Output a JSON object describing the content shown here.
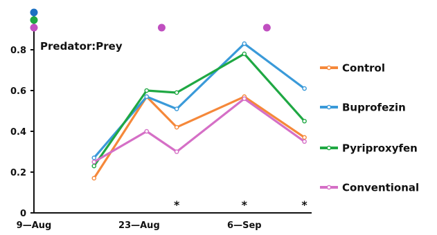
{
  "chart_data": {
    "type": "line",
    "title": "Predator:Prey",
    "xlabel": "",
    "ylabel": "",
    "ylim": [
      0,
      0.9
    ],
    "yticks": [
      0,
      0.2,
      0.4,
      0.6,
      0.8
    ],
    "ytick_labels": [
      "0",
      "0.2",
      "0.4",
      "0.6",
      "0.8"
    ],
    "x_tick_labels": [
      "9—Aug",
      "23—Aug",
      "6—Sep"
    ],
    "x_tick_days": [
      0,
      14,
      28
    ],
    "x_days": [
      8,
      15,
      19,
      28,
      36
    ],
    "series": [
      {
        "name": "Control",
        "color": "#f5883a",
        "values": [
          0.17,
          0.57,
          0.42,
          0.57,
          0.37
        ]
      },
      {
        "name": "Buprofezin",
        "color": "#3a9ad9",
        "values": [
          0.27,
          0.57,
          0.51,
          0.83,
          0.61
        ]
      },
      {
        "name": "Pyriproxyfen",
        "color": "#1fa843",
        "values": [
          0.23,
          0.6,
          0.59,
          0.78,
          0.45
        ]
      },
      {
        "name": "Conventional",
        "color": "#d56fc6",
        "values": [
          0.25,
          0.4,
          0.3,
          0.56,
          0.35
        ]
      }
    ],
    "legend_position": "right",
    "grid": false,
    "significance_markers": [
      {
        "x_day": 19,
        "label": "*"
      },
      {
        "x_day": 28,
        "label": "*"
      },
      {
        "x_day": 36,
        "label": "*"
      }
    ],
    "treatment_dots": [
      {
        "x_day": 0,
        "colors": [
          "#1a6fc2",
          "#1fa843",
          "#c04fc0"
        ]
      },
      {
        "x_day": 17,
        "colors": [
          "#c04fc0"
        ]
      },
      {
        "x_day": 31,
        "colors": [
          "#c04fc0"
        ]
      }
    ]
  }
}
